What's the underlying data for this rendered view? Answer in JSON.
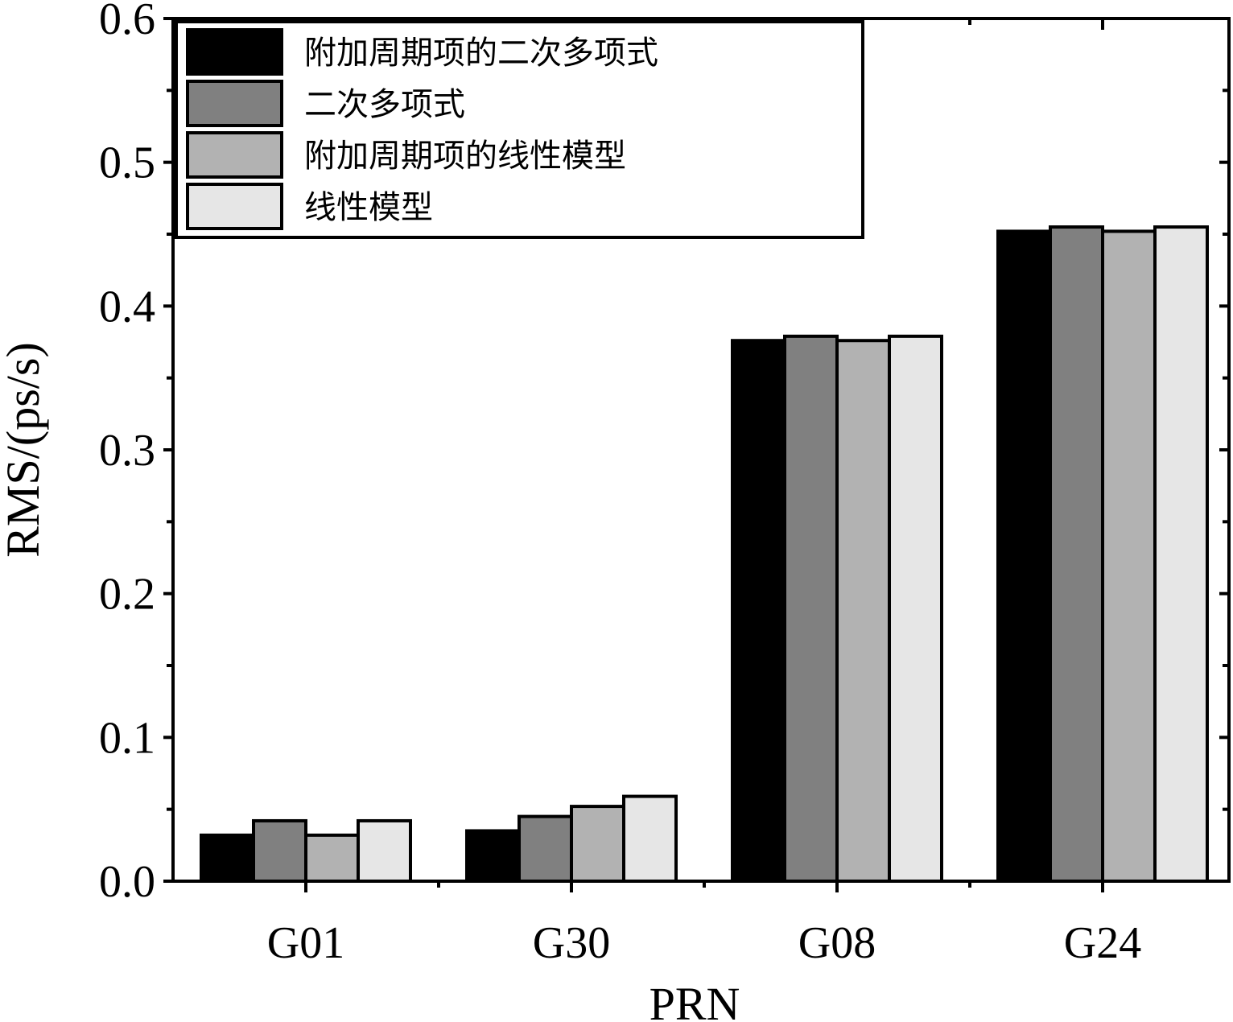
{
  "chart_data": {
    "type": "bar",
    "xlabel": "PRN",
    "ylabel": "RMS/(ps/s)",
    "categories": [
      "G01",
      "G30",
      "G08",
      "G24"
    ],
    "ylim": [
      0,
      0.6
    ],
    "yticks": [
      "0.0",
      "0.1",
      "0.2",
      "0.3",
      "0.4",
      "0.5",
      "0.6"
    ],
    "legend_position": "top-left",
    "series": [
      {
        "name": "附加周期项的二次多项式",
        "color": "#000000",
        "values": [
          0.032,
          0.035,
          0.376,
          0.452
        ]
      },
      {
        "name": "二次多项式",
        "color": "#808080",
        "values": [
          0.042,
          0.045,
          0.379,
          0.455
        ]
      },
      {
        "name": "附加周期项的线性模型",
        "color": "#b2b2b2",
        "values": [
          0.032,
          0.052,
          0.376,
          0.452
        ]
      },
      {
        "name": "线性模型",
        "color": "#e6e6e6",
        "values": [
          0.042,
          0.059,
          0.379,
          0.455
        ]
      }
    ]
  }
}
